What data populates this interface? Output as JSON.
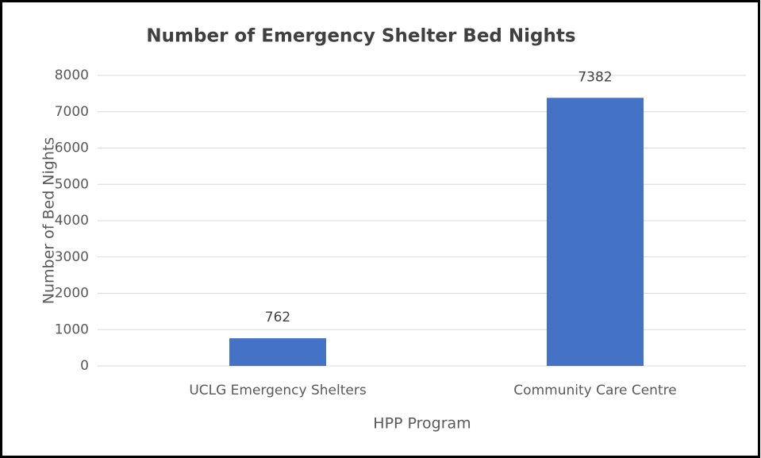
{
  "chart_data": {
    "type": "bar",
    "title": "Number of Emergency Shelter Bed Nights",
    "categories": [
      "UCLG Emergency Shelters",
      "Community Care Centre"
    ],
    "values": [
      762,
      7382
    ],
    "color": "#4472c4",
    "xlabel": "HPP Program",
    "ylabel": "Number of Bed Nights",
    "ylim": [
      0,
      8000
    ],
    "yticks": [
      0,
      1000,
      2000,
      3000,
      4000,
      5000,
      6000,
      7000,
      8000
    ],
    "grid": true
  }
}
